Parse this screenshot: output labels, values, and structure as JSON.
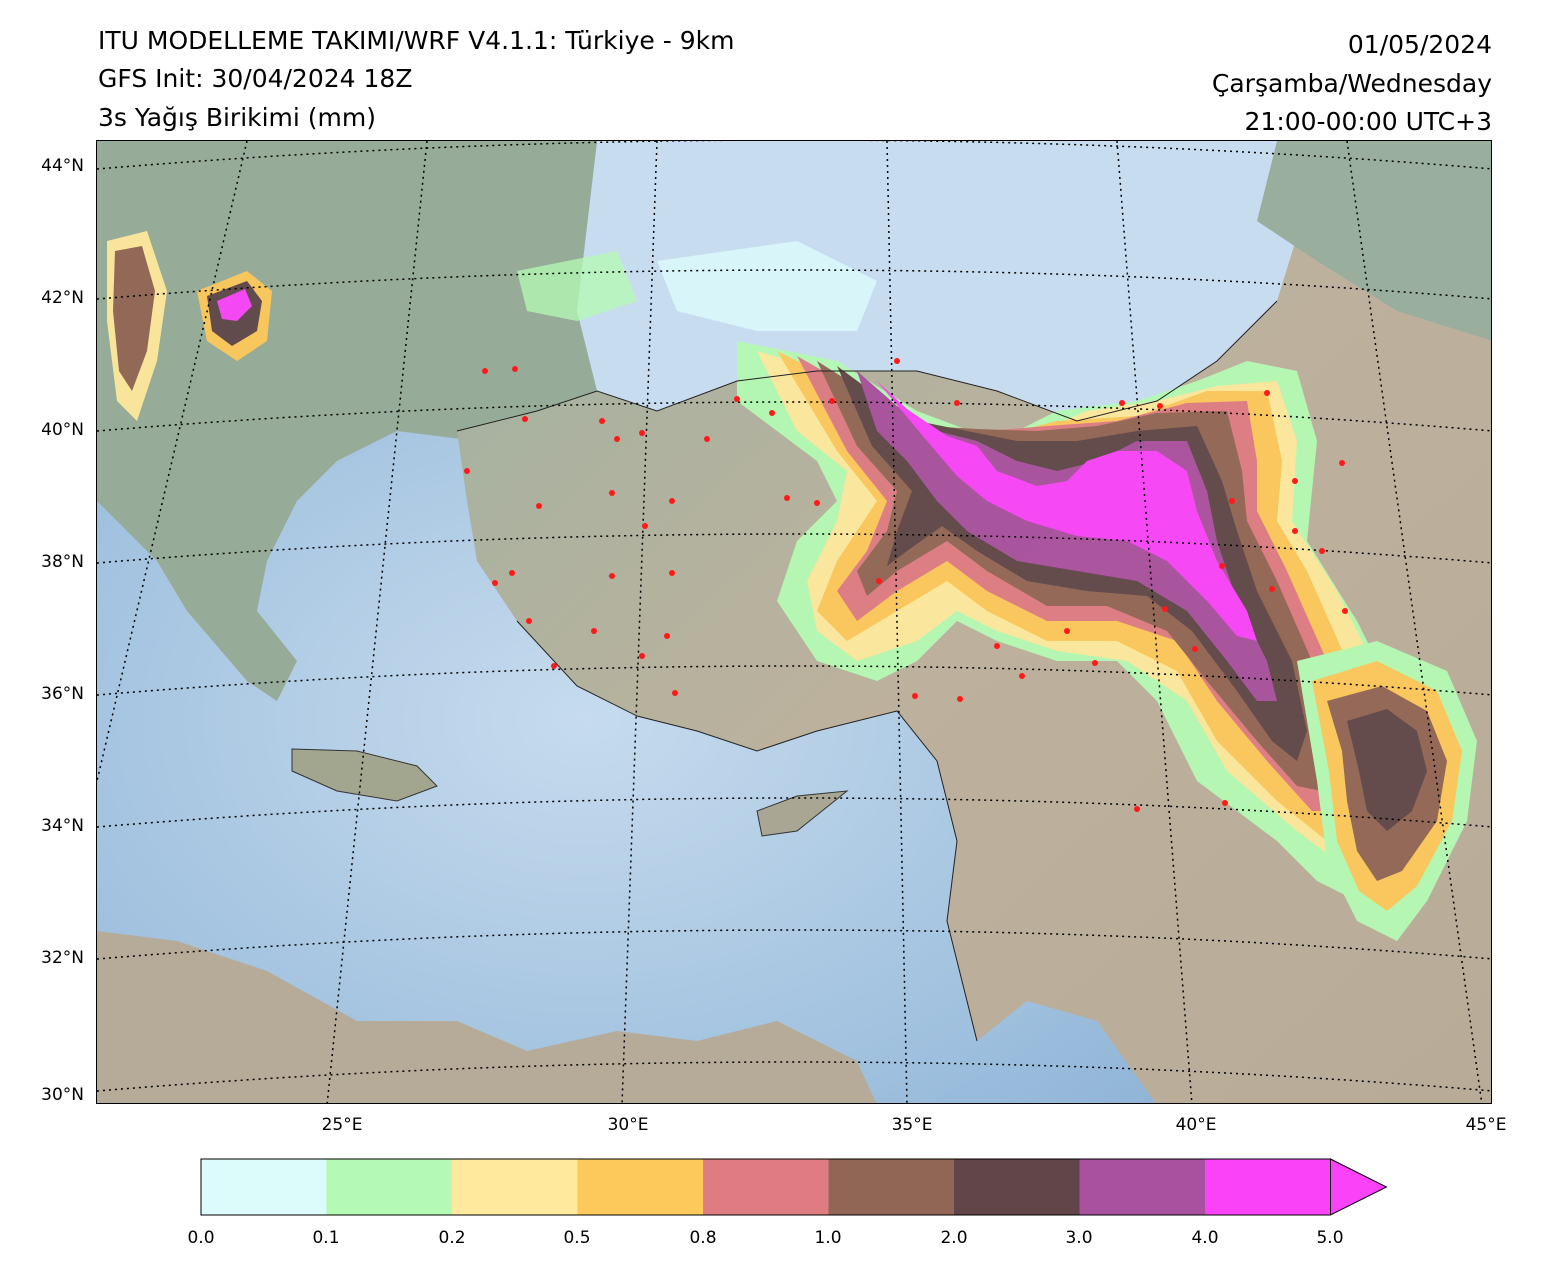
{
  "header": {
    "title": "ITU MODELLEME TAKIMI/WRF V4.1.1: Türkiye - 9km",
    "init": "GFS Init: 30/04/2024 18Z",
    "variable": "3s Yağış Birikimi (mm)",
    "date": "01/05/2024",
    "weekday": "Çarşamba/Wednesday",
    "period": "21:00-00:00 UTC+3"
  },
  "map": {
    "lat_labels": [
      "44°N",
      "42°N",
      "40°N",
      "38°N",
      "36°N",
      "34°N",
      "32°N",
      "30°N"
    ],
    "lon_labels": [
      "25°E",
      "30°E",
      "35°E",
      "40°E",
      "45°E"
    ],
    "colors": {
      "sea": "#b8d2e8",
      "sea_deep": "#8fb6d9",
      "land": "#b9ae9b",
      "land_green": "#8ea894"
    }
  },
  "colorbar": {
    "ticks": [
      "0.0",
      "0.1",
      "0.2",
      "0.5",
      "0.8",
      "1.0",
      "2.0",
      "3.0",
      "4.0",
      "5.0"
    ],
    "colors": [
      "#dcfcfc",
      "#b4fab4",
      "#fee99c",
      "#fdc95a",
      "#de7c82",
      "#926654",
      "#604648",
      "#a9519e",
      "#fa43f9",
      "#fa43f9"
    ]
  }
}
